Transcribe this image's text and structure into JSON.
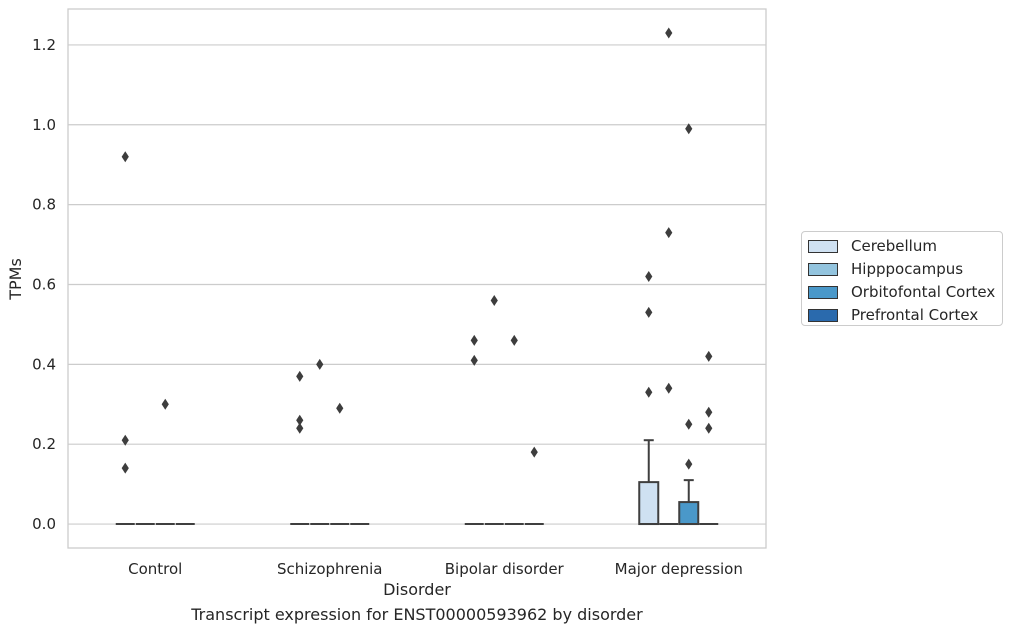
{
  "chart_data": {
    "type": "box",
    "xlabel": "Disorder",
    "ylabel": "TPMs",
    "caption": "Transcript expression for ENST00000593962 by disorder",
    "categories": [
      "Control",
      "Schizophrenia",
      "Bipolar disorder",
      "Major depression"
    ],
    "ylim": [
      -0.06,
      1.29
    ],
    "yticks": [
      "0.0",
      "0.2",
      "0.4",
      "0.6",
      "0.8",
      "1.0",
      "1.2"
    ],
    "grid": true,
    "legend_position": "right",
    "series": [
      {
        "name": "Cerebellum",
        "color": "#cfe1f2",
        "boxes": [
          {
            "q1": 0,
            "median": 0,
            "q3": 0,
            "whisker_low": 0,
            "whisker_high": 0,
            "outliers": [
              0.14,
              0.21,
              0.92
            ]
          },
          {
            "q1": 0,
            "median": 0,
            "q3": 0,
            "whisker_low": 0,
            "whisker_high": 0,
            "outliers": [
              0.24,
              0.26,
              0.37
            ]
          },
          {
            "q1": 0,
            "median": 0,
            "q3": 0,
            "whisker_low": 0,
            "whisker_high": 0,
            "outliers": [
              0.41,
              0.46
            ]
          },
          {
            "q1": 0,
            "median": 0,
            "q3": 0.105,
            "whisker_low": 0,
            "whisker_high": 0.21,
            "outliers": [
              0.33,
              0.53,
              0.62
            ]
          }
        ]
      },
      {
        "name": "Hipppocampus",
        "color": "#93c4de",
        "boxes": [
          {
            "q1": 0,
            "median": 0,
            "q3": 0,
            "whisker_low": 0,
            "whisker_high": 0,
            "outliers": []
          },
          {
            "q1": 0,
            "median": 0,
            "q3": 0,
            "whisker_low": 0,
            "whisker_high": 0,
            "outliers": [
              0.4
            ]
          },
          {
            "q1": 0,
            "median": 0,
            "q3": 0,
            "whisker_low": 0,
            "whisker_high": 0,
            "outliers": [
              0.56
            ]
          },
          {
            "q1": 0,
            "median": 0,
            "q3": 0,
            "whisker_low": 0,
            "whisker_high": 0,
            "outliers": [
              0.34,
              0.73,
              1.23
            ]
          }
        ]
      },
      {
        "name": "Orbitofontal Cortex",
        "color": "#4a98c9",
        "boxes": [
          {
            "q1": 0,
            "median": 0,
            "q3": 0,
            "whisker_low": 0,
            "whisker_high": 0,
            "outliers": [
              0.3
            ]
          },
          {
            "q1": 0,
            "median": 0,
            "q3": 0,
            "whisker_low": 0,
            "whisker_high": 0,
            "outliers": [
              0.29
            ]
          },
          {
            "q1": 0,
            "median": 0,
            "q3": 0,
            "whisker_low": 0,
            "whisker_high": 0,
            "outliers": [
              0.46
            ]
          },
          {
            "q1": 0,
            "median": 0,
            "q3": 0.055,
            "whisker_low": 0,
            "whisker_high": 0.11,
            "outliers": [
              0.15,
              0.25,
              0.99
            ]
          }
        ]
      },
      {
        "name": "Prefrontal Cortex",
        "color": "#2a6aad",
        "boxes": [
          {
            "q1": 0,
            "median": 0,
            "q3": 0,
            "whisker_low": 0,
            "whisker_high": 0,
            "outliers": []
          },
          {
            "q1": 0,
            "median": 0,
            "q3": 0,
            "whisker_low": 0,
            "whisker_high": 0,
            "outliers": []
          },
          {
            "q1": 0,
            "median": 0,
            "q3": 0,
            "whisker_low": 0,
            "whisker_high": 0,
            "outliers": [
              0.18
            ]
          },
          {
            "q1": 0,
            "median": 0,
            "q3": 0,
            "whisker_low": 0,
            "whisker_high": 0,
            "outliers": [
              0.24,
              0.28,
              0.42
            ]
          }
        ]
      }
    ]
  }
}
